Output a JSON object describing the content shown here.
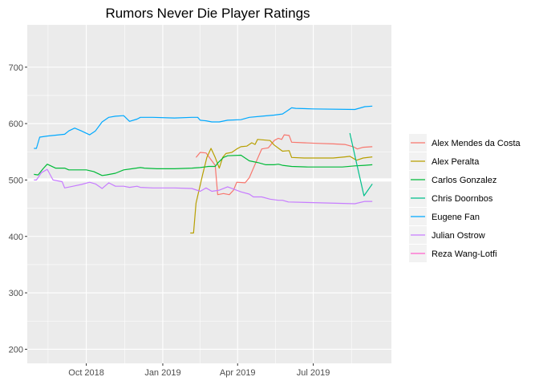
{
  "chart_data": {
    "type": "line",
    "title": "Rumors Never Die Player Ratings",
    "xlabel": "",
    "ylabel": "",
    "x_axis": {
      "type": "date",
      "range": [
        "2018-07-22",
        "2019-10-03"
      ],
      "ticks": [
        {
          "date": "2018-10-01",
          "label": "Oct 2018"
        },
        {
          "date": "2019-01-01",
          "label": "Jan 2019"
        },
        {
          "date": "2019-04-01",
          "label": "Apr 2019"
        },
        {
          "date": "2019-07-01",
          "label": "Jul 2019"
        }
      ]
    },
    "y_axis": {
      "range": [
        175,
        775
      ],
      "ticks": [
        200,
        300,
        400,
        500,
        600,
        700
      ]
    },
    "grid": true,
    "reference_line": {
      "y": 500
    },
    "legend": "right",
    "series": [
      {
        "name": "Alex Mendes da Costa",
        "color": "#F8766D",
        "points": [
          [
            "2019-02-10",
            540
          ],
          [
            "2019-02-15",
            549
          ],
          [
            "2019-02-22",
            548
          ],
          [
            "2019-02-28",
            536
          ],
          [
            "2019-03-05",
            526
          ],
          [
            "2019-03-08",
            474
          ],
          [
            "2019-03-15",
            476
          ],
          [
            "2019-03-22",
            474
          ],
          [
            "2019-03-27",
            482
          ],
          [
            "2019-03-31",
            496
          ],
          [
            "2019-04-10",
            495
          ],
          [
            "2019-04-15",
            504
          ],
          [
            "2019-04-25",
            538
          ],
          [
            "2019-04-30",
            555
          ],
          [
            "2019-05-08",
            557
          ],
          [
            "2019-05-15",
            570
          ],
          [
            "2019-05-20",
            574
          ],
          [
            "2019-05-24",
            572
          ],
          [
            "2019-05-27",
            580
          ],
          [
            "2019-06-02",
            579
          ],
          [
            "2019-06-05",
            567
          ],
          [
            "2019-06-20",
            566
          ],
          [
            "2019-07-05",
            565
          ],
          [
            "2019-07-25",
            564
          ],
          [
            "2019-08-08",
            563
          ],
          [
            "2019-08-18",
            559
          ],
          [
            "2019-08-23",
            555
          ],
          [
            "2019-08-30",
            558
          ],
          [
            "2019-09-10",
            559
          ]
        ]
      },
      {
        "name": "Alex Peralta",
        "color": "#B79F00",
        "points": [
          [
            "2019-02-03",
            406
          ],
          [
            "2019-02-07",
            406
          ],
          [
            "2019-02-10",
            459
          ],
          [
            "2019-02-18",
            510
          ],
          [
            "2019-02-23",
            540
          ],
          [
            "2019-02-28",
            556
          ],
          [
            "2019-03-05",
            540
          ],
          [
            "2019-03-10",
            521
          ],
          [
            "2019-03-14",
            540
          ],
          [
            "2019-03-18",
            547
          ],
          [
            "2019-03-25",
            549
          ],
          [
            "2019-03-31",
            555
          ],
          [
            "2019-04-05",
            559
          ],
          [
            "2019-04-12",
            560
          ],
          [
            "2019-04-18",
            566
          ],
          [
            "2019-04-22",
            563
          ],
          [
            "2019-04-25",
            572
          ],
          [
            "2019-05-10",
            570
          ],
          [
            "2019-05-15",
            562
          ],
          [
            "2019-05-25",
            551
          ],
          [
            "2019-06-02",
            552
          ],
          [
            "2019-06-05",
            540
          ],
          [
            "2019-06-20",
            539
          ],
          [
            "2019-07-10",
            539
          ],
          [
            "2019-07-25",
            539
          ],
          [
            "2019-08-08",
            541
          ],
          [
            "2019-08-14",
            542
          ],
          [
            "2019-08-22",
            535
          ],
          [
            "2019-08-30",
            539
          ],
          [
            "2019-09-10",
            541
          ]
        ]
      },
      {
        "name": "Carlos Gonzalez",
        "color": "#00BA38",
        "points": [
          [
            "2018-07-30",
            510
          ],
          [
            "2018-08-04",
            509
          ],
          [
            "2018-08-10",
            520
          ],
          [
            "2018-08-15",
            528
          ],
          [
            "2018-08-25",
            521
          ],
          [
            "2018-09-05",
            521
          ],
          [
            "2018-09-10",
            518
          ],
          [
            "2018-09-25",
            518
          ],
          [
            "2018-10-01",
            518
          ],
          [
            "2018-10-10",
            515
          ],
          [
            "2018-10-20",
            508
          ],
          [
            "2018-10-25",
            509
          ],
          [
            "2018-11-05",
            512
          ],
          [
            "2018-11-15",
            518
          ],
          [
            "2018-11-25",
            520
          ],
          [
            "2018-12-05",
            522
          ],
          [
            "2018-12-10",
            521
          ],
          [
            "2018-12-25",
            520
          ],
          [
            "2019-01-15",
            520
          ],
          [
            "2019-02-05",
            521
          ],
          [
            "2019-02-15",
            522
          ],
          [
            "2019-02-25",
            524
          ],
          [
            "2019-03-05",
            524
          ],
          [
            "2019-03-08",
            530
          ],
          [
            "2019-03-15",
            540
          ],
          [
            "2019-03-20",
            543
          ],
          [
            "2019-04-05",
            544
          ],
          [
            "2019-04-10",
            539
          ],
          [
            "2019-04-15",
            534
          ],
          [
            "2019-04-25",
            531
          ],
          [
            "2019-05-05",
            527
          ],
          [
            "2019-05-15",
            527
          ],
          [
            "2019-05-20",
            528
          ],
          [
            "2019-05-25",
            526
          ],
          [
            "2019-06-05",
            524
          ],
          [
            "2019-06-25",
            523
          ],
          [
            "2019-07-15",
            523
          ],
          [
            "2019-08-05",
            523
          ],
          [
            "2019-08-20",
            525
          ],
          [
            "2019-09-01",
            526
          ],
          [
            "2019-09-10",
            527
          ]
        ]
      },
      {
        "name": "Chris Doornbos",
        "color": "#00C08B",
        "points": [
          [
            "2019-08-14",
            583
          ],
          [
            "2019-08-22",
            530
          ],
          [
            "2019-08-31",
            472
          ],
          [
            "2019-09-10",
            493
          ]
        ]
      },
      {
        "name": "Eugene Fan",
        "color": "#00A9FF",
        "points": [
          [
            "2018-07-30",
            556
          ],
          [
            "2018-08-02",
            556
          ],
          [
            "2018-08-06",
            576
          ],
          [
            "2018-08-15",
            578
          ],
          [
            "2018-09-05",
            581
          ],
          [
            "2018-09-10",
            587
          ],
          [
            "2018-09-17",
            592
          ],
          [
            "2018-09-25",
            587
          ],
          [
            "2018-10-05",
            580
          ],
          [
            "2018-10-12",
            587
          ],
          [
            "2018-10-20",
            603
          ],
          [
            "2018-10-28",
            611
          ],
          [
            "2018-11-05",
            613
          ],
          [
            "2018-11-15",
            614
          ],
          [
            "2018-11-22",
            604
          ],
          [
            "2018-12-01",
            608
          ],
          [
            "2018-12-05",
            611
          ],
          [
            "2018-12-20",
            611
          ],
          [
            "2019-01-15",
            610
          ],
          [
            "2019-02-05",
            611
          ],
          [
            "2019-02-12",
            611
          ],
          [
            "2019-02-15",
            606
          ],
          [
            "2019-02-22",
            605
          ],
          [
            "2019-03-01",
            603
          ],
          [
            "2019-03-10",
            603
          ],
          [
            "2019-03-20",
            606
          ],
          [
            "2019-04-05",
            607
          ],
          [
            "2019-04-15",
            611
          ],
          [
            "2019-04-30",
            613
          ],
          [
            "2019-05-15",
            615
          ],
          [
            "2019-05-25",
            617
          ],
          [
            "2019-06-01",
            624
          ],
          [
            "2019-06-05",
            628
          ],
          [
            "2019-06-10",
            627
          ],
          [
            "2019-07-01",
            626
          ],
          [
            "2019-08-20",
            625
          ],
          [
            "2019-09-01",
            630
          ],
          [
            "2019-09-10",
            631
          ]
        ]
      },
      {
        "name": "Julian Ostrow",
        "color": "#C77CFF",
        "points": [
          [
            "2018-07-30",
            500
          ],
          [
            "2018-08-02",
            500
          ],
          [
            "2018-08-08",
            513
          ],
          [
            "2018-08-15",
            519
          ],
          [
            "2018-08-22",
            500
          ],
          [
            "2018-09-02",
            497
          ],
          [
            "2018-09-05",
            486
          ],
          [
            "2018-09-15",
            489
          ],
          [
            "2018-09-25",
            492
          ],
          [
            "2018-10-05",
            496
          ],
          [
            "2018-10-12",
            493
          ],
          [
            "2018-10-20",
            485
          ],
          [
            "2018-10-28",
            495
          ],
          [
            "2018-11-05",
            489
          ],
          [
            "2018-11-15",
            489
          ],
          [
            "2018-11-22",
            487
          ],
          [
            "2018-12-01",
            489
          ],
          [
            "2018-12-05",
            487
          ],
          [
            "2018-12-20",
            486
          ],
          [
            "2019-01-15",
            486
          ],
          [
            "2019-02-05",
            485
          ],
          [
            "2019-02-15",
            480
          ],
          [
            "2019-02-22",
            486
          ],
          [
            "2019-03-01",
            480
          ],
          [
            "2019-03-10",
            482
          ],
          [
            "2019-03-20",
            488
          ],
          [
            "2019-04-05",
            479
          ],
          [
            "2019-04-15",
            475
          ],
          [
            "2019-04-20",
            470
          ],
          [
            "2019-04-30",
            470
          ],
          [
            "2019-05-10",
            466
          ],
          [
            "2019-05-20",
            464
          ],
          [
            "2019-05-25",
            464
          ],
          [
            "2019-06-01",
            461
          ],
          [
            "2019-07-01",
            460
          ],
          [
            "2019-08-20",
            458
          ],
          [
            "2019-09-01",
            462
          ],
          [
            "2019-09-10",
            462
          ]
        ]
      },
      {
        "name": "Reza Wang-Lotfi",
        "color": "#FF61CC",
        "points": []
      }
    ]
  }
}
